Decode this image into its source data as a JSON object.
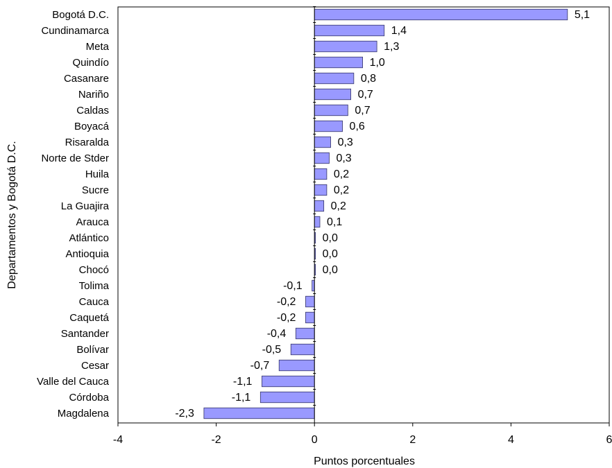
{
  "chart_data": {
    "type": "bar",
    "orientation": "horizontal",
    "title": "",
    "xlabel": "Puntos porcentuales",
    "ylabel": "Departamentos y Bogotá D.C.",
    "xlim": [
      -4,
      6
    ],
    "xticks": [
      -4,
      -2,
      0,
      2,
      4,
      6
    ],
    "grid": false,
    "bar_color": "#9999ff",
    "bar_stroke": "#333366",
    "categories": [
      "Bogotá D.C.",
      "Cundinamarca",
      "Meta",
      "Quindío",
      "Casanare",
      "Nariño",
      "Caldas",
      "Boyacá",
      "Risaralda",
      "Norte de Stder",
      "Huila",
      "Sucre",
      "La Guajira",
      "Arauca",
      "Atlántico",
      "Antioquia",
      "Chocó",
      "Tolima",
      "Cauca",
      "Caquetá",
      "Santander",
      "Bolívar",
      "Cesar",
      "Valle del Cauca",
      "Córdoba",
      "Magdalena"
    ],
    "values": [
      5.15,
      1.42,
      1.27,
      0.98,
      0.8,
      0.74,
      0.68,
      0.57,
      0.33,
      0.3,
      0.25,
      0.25,
      0.19,
      0.11,
      0.02,
      0.02,
      0.02,
      -0.05,
      -0.18,
      -0.18,
      -0.38,
      -0.48,
      -0.72,
      -1.07,
      -1.1,
      -2.25
    ],
    "data_labels": [
      "5,1",
      "1,4",
      "1,3",
      "1,0",
      "0,8",
      "0,7",
      "0,7",
      "0,6",
      "0,3",
      "0,3",
      "0,2",
      "0,2",
      "0,2",
      "0,1",
      "0,0",
      "0,0",
      "0,0",
      "-0,1",
      "-0,2",
      "-0,2",
      "-0,4",
      "-0,5",
      "-0,7",
      "-1,1",
      "-1,1",
      "-2,3"
    ]
  }
}
